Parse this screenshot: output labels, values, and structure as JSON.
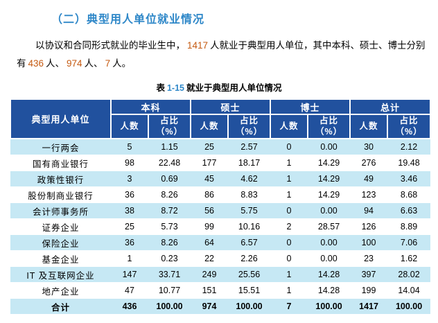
{
  "section": {
    "heading": "（二）典型用人单位就业情况"
  },
  "paragraph": {
    "t1": "以协议和合同形式就业的毕业生中，",
    "n1": "1417",
    "t2": "人就业于典型用人单位，其中本科、硕士、博士分别有",
    "n2": "436",
    "t3": "人、",
    "n3": "974",
    "t4": "人、",
    "n4": "7",
    "t5": "人。"
  },
  "table": {
    "caption": {
      "prefix": "表",
      "number": "1-15",
      "title": "就业于典型用人单位情况"
    },
    "header": {
      "col0": "典型用人单位",
      "groups": [
        "本科",
        "硕士",
        "博士",
        "总计"
      ],
      "sub_count": "人数",
      "sub_pct": "占比\n（%）"
    },
    "rows": [
      {
        "name": "一行两会",
        "values": [
          "5",
          "1.15",
          "25",
          "2.57",
          "0",
          "0.00",
          "30",
          "2.12"
        ],
        "total": false
      },
      {
        "name": "国有商业银行",
        "values": [
          "98",
          "22.48",
          "177",
          "18.17",
          "1",
          "14.29",
          "276",
          "19.48"
        ],
        "total": false
      },
      {
        "name": "政策性银行",
        "values": [
          "3",
          "0.69",
          "45",
          "4.62",
          "1",
          "14.29",
          "49",
          "3.46"
        ],
        "total": false
      },
      {
        "name": "股份制商业银行",
        "values": [
          "36",
          "8.26",
          "86",
          "8.83",
          "1",
          "14.29",
          "123",
          "8.68"
        ],
        "total": false
      },
      {
        "name": "会计师事务所",
        "values": [
          "38",
          "8.72",
          "56",
          "5.75",
          "0",
          "0.00",
          "94",
          "6.63"
        ],
        "total": false
      },
      {
        "name": "证券企业",
        "values": [
          "25",
          "5.73",
          "99",
          "10.16",
          "2",
          "28.57",
          "126",
          "8.89"
        ],
        "total": false
      },
      {
        "name": "保险企业",
        "values": [
          "36",
          "8.26",
          "64",
          "6.57",
          "0",
          "0.00",
          "100",
          "7.06"
        ],
        "total": false
      },
      {
        "name": "基金企业",
        "values": [
          "1",
          "0.23",
          "22",
          "2.26",
          "0",
          "0.00",
          "23",
          "1.62"
        ],
        "total": false
      },
      {
        "name": "IT 及互联网企业",
        "values": [
          "147",
          "33.71",
          "249",
          "25.56",
          "1",
          "14.28",
          "397",
          "28.02"
        ],
        "total": false
      },
      {
        "name": "地产企业",
        "values": [
          "47",
          "10.77",
          "151",
          "15.51",
          "1",
          "14.28",
          "199",
          "14.04"
        ],
        "total": false
      },
      {
        "name": "合计",
        "values": [
          "436",
          "100.00",
          "974",
          "100.00",
          "7",
          "100.00",
          "1417",
          "100.00"
        ],
        "total": true
      }
    ]
  },
  "colors": {
    "heading_blue": "#2E87C8",
    "number_orange": "#C55A11",
    "header_bg": "#21519E",
    "stripe_blue": "#C6E8F4"
  }
}
